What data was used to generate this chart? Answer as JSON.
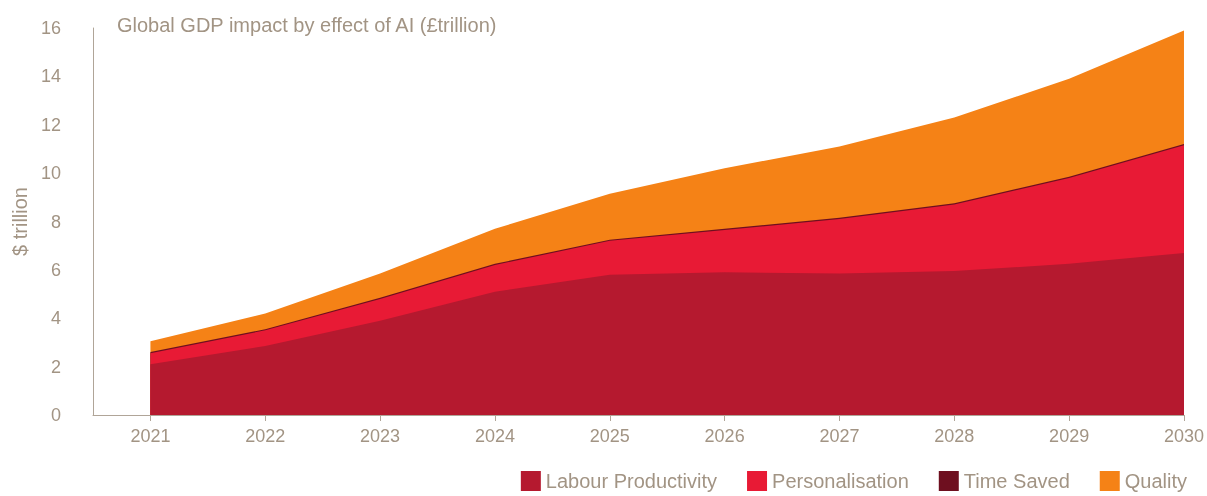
{
  "chart_data": {
    "type": "area",
    "stacked": true,
    "title": "Global GDP impact by effect of AI (£trillion)",
    "ylabel": "$ trillion",
    "x": [
      2021,
      2022,
      2023,
      2024,
      2025,
      2026,
      2027,
      2028,
      2029,
      2030
    ],
    "xlim": [
      2020.5,
      2030
    ],
    "xticks": [
      2021,
      2022,
      2023,
      2024,
      2025,
      2026,
      2027,
      2028,
      2029,
      2030
    ],
    "ylim": [
      0,
      16
    ],
    "yticks": [
      0,
      2,
      4,
      6,
      8,
      10,
      12,
      14,
      16
    ],
    "grid": false,
    "legend": "bottom right",
    "marker": "none",
    "series": [
      {
        "name": "Labour Productivity",
        "color": "#b5192f",
        "values": [
          2.1,
          2.85,
          3.9,
          5.1,
          5.8,
          5.9,
          5.85,
          5.95,
          6.25,
          6.7
        ]
      },
      {
        "name": "Personalisation",
        "color": "#e81a35",
        "values": [
          0.45,
          0.65,
          0.9,
          1.1,
          1.4,
          1.75,
          2.25,
          2.75,
          3.55,
          4.45
        ]
      },
      {
        "name": "Time Saved",
        "color": "#6e0f1f",
        "values": [
          0.05,
          0.05,
          0.05,
          0.05,
          0.05,
          0.05,
          0.05,
          0.05,
          0.05,
          0.05
        ]
      },
      {
        "name": "Quality",
        "color": "#f58216",
        "values": [
          0.45,
          0.65,
          1.0,
          1.45,
          1.9,
          2.5,
          2.95,
          3.55,
          4.05,
          4.7
        ]
      }
    ]
  }
}
